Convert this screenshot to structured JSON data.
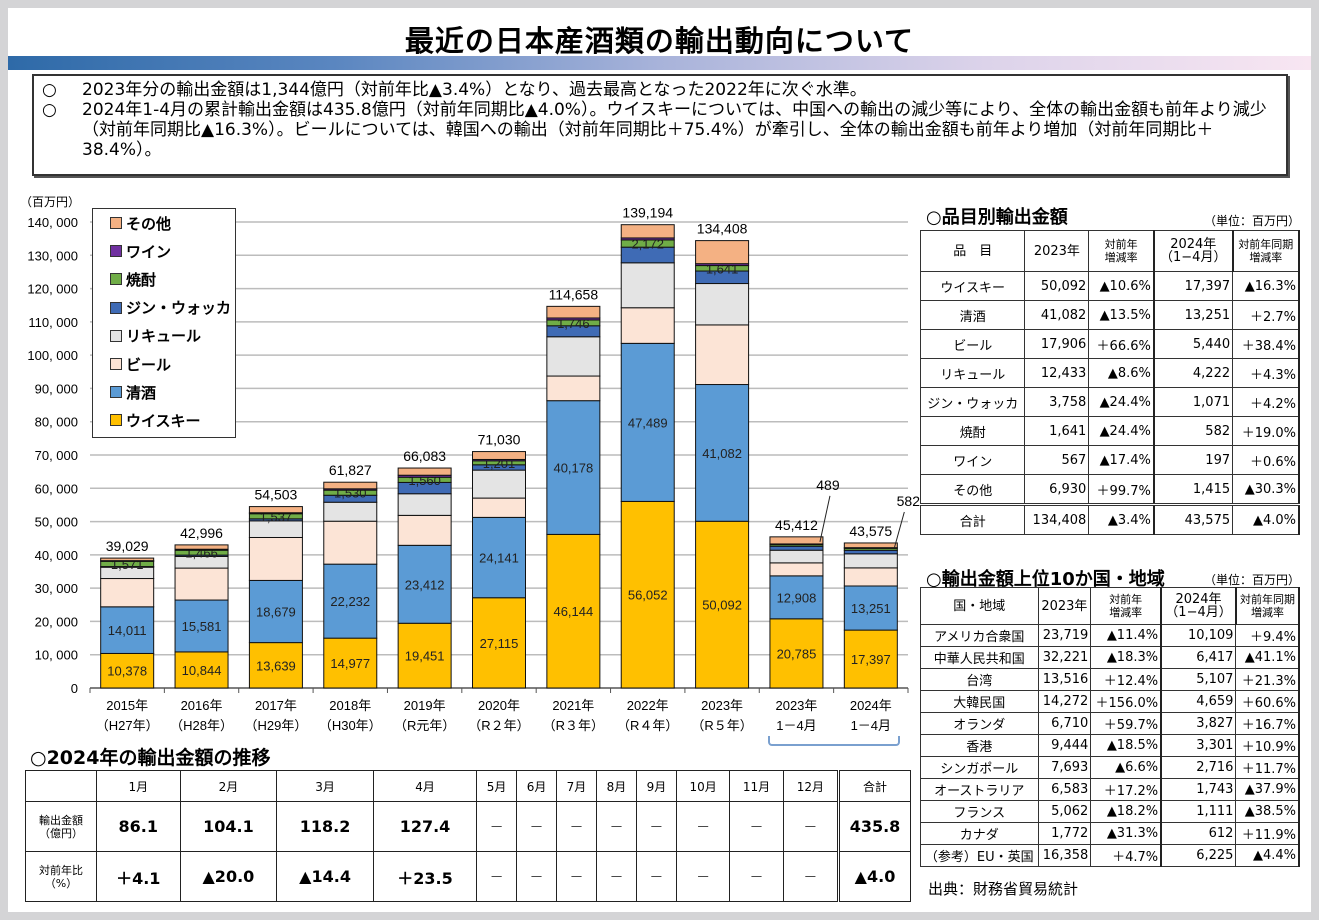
{
  "title": "最近の日本産酒類の輸出動向について",
  "summary": {
    "bullet": "○",
    "lines": [
      "2023年分の輸出金額は1,344億円（対前年比▲3.4%）となり、過去最高となった2022年に次ぐ水準。",
      "2024年1-4月の累計輸出金額は435.8億円（対前年同期比▲4.0%）。ウイスキーについては、中国への輸出の減少等により、全体の輸出金額も前年より減少（対前年同期比▲16.3%）。ビールについては、韓国への輸出（対前年同期比＋75.4%）が牽引し、全体の輸出金額も前年より増加（対前年同期比＋38.4%）。"
    ]
  },
  "chart_data": {
    "type": "bar",
    "stacked": true,
    "title": "",
    "ylabel": "（百万円）",
    "xlabel": "",
    "ylim": [
      0,
      140000
    ],
    "yticks": [
      0,
      10000,
      20000,
      30000,
      40000,
      50000,
      60000,
      70000,
      80000,
      90000,
      100000,
      110000,
      120000,
      130000,
      140000
    ],
    "ytick_labels": [
      "0",
      "10, 000",
      "20, 000",
      "30, 000",
      "40, 000",
      "50, 000",
      "60, 000",
      "70, 000",
      "80, 000",
      "90, 000",
      "100, 000",
      "110, 000",
      "120, 000",
      "130, 000",
      "140, 000"
    ],
    "grid": true,
    "legend_position": "top-left",
    "categories": [
      [
        "2015年",
        "（H27年）"
      ],
      [
        "2016年",
        "（H28年）"
      ],
      [
        "2017年",
        "（H29年）"
      ],
      [
        "2018年",
        "（H30年）"
      ],
      [
        "2019年",
        "（R元年）"
      ],
      [
        "2020年",
        "（R２年）"
      ],
      [
        "2021年",
        "（R３年）"
      ],
      [
        "2022年",
        "（R４年）"
      ],
      [
        "2023年",
        "（R５年）"
      ],
      [
        "2023年",
        "1－4月"
      ],
      [
        "2024年",
        "1－4月"
      ]
    ],
    "series": [
      {
        "name": "ウイスキー",
        "color": "#ffc000",
        "values": [
          10378,
          10844,
          13639,
          14977,
          19451,
          27115,
          46144,
          56052,
          50092,
          20785,
          17397
        ],
        "labels": [
          "10,378",
          "10,844",
          "13,639",
          "14,977",
          "19,451",
          "27,115",
          "46,144",
          "56,052",
          "50,092",
          "20,785",
          "17,397"
        ]
      },
      {
        "name": "清酒",
        "color": "#5b9bd5",
        "values": [
          14011,
          15581,
          18679,
          22232,
          23412,
          24141,
          40178,
          47489,
          41082,
          12908,
          13251
        ],
        "labels": [
          "14,011",
          "15,581",
          "18,679",
          "22,232",
          "23,412",
          "24,141",
          "40,178",
          "47,489",
          "41,082",
          "12,908",
          "13,251"
        ]
      },
      {
        "name": "ビール",
        "color": "#fce4d6",
        "values": [
          8500,
          9600,
          12900,
          12900,
          9000,
          5800,
          7400,
          10700,
          17906,
          3900,
          5440
        ],
        "labels": []
      },
      {
        "name": "リキュール",
        "color": "#e4e4e4",
        "values": [
          3400,
          3500,
          5000,
          5700,
          6500,
          8400,
          11800,
          13500,
          12433,
          3800,
          4222
        ]
      },
      {
        "name": "ジン・ウォッカ",
        "color": "#3f6bb5",
        "values": [
          200,
          400,
          600,
          2100,
          3400,
          1600,
          3300,
          4700,
          3758,
          1200,
          1071
        ]
      },
      {
        "name": "焼酎",
        "color": "#70ad47",
        "values": [
          1571,
          1466,
          1537,
          1530,
          1560,
          1201,
          1746,
          2172,
          1641,
          489,
          582
        ],
        "labels": [
          "1,571",
          "1,466",
          "1,537",
          "1,530",
          "1,560",
          "1,201",
          "1,746",
          "2,172",
          "1,641",
          "489",
          "582"
        ]
      },
      {
        "name": "ワイン",
        "color": "#7030a0",
        "values": [
          200,
          300,
          300,
          400,
          600,
          400,
          600,
          600,
          567,
          200,
          197
        ]
      },
      {
        "name": "その他",
        "color": "#f4b183",
        "values": [
          769,
          1305,
          1848,
          1988,
          2160,
          2373,
          3490,
          3981,
          6930,
          2130,
          1415
        ]
      }
    ],
    "totals": [
      39029,
      42996,
      54503,
      61827,
      66083,
      71030,
      114658,
      139194,
      134408,
      45412,
      43575
    ],
    "total_labels": [
      "39,029",
      "42,996",
      "54,503",
      "61,827",
      "66,083",
      "71,030",
      "114,658",
      "139,194",
      "134,408",
      "45,412",
      "43,575"
    ],
    "callouts": [
      "489",
      "582"
    ]
  },
  "legend": [
    {
      "label": "その他",
      "color": "#f4b183"
    },
    {
      "label": "ワイン",
      "color": "#7030a0"
    },
    {
      "label": "焼酎",
      "color": "#70ad47"
    },
    {
      "label": "ジン・ウォッカ",
      "color": "#3f6bb5"
    },
    {
      "label": "リキュール",
      "color": "#e4e4e4"
    },
    {
      "label": "ビール",
      "color": "#fce4d6"
    },
    {
      "label": "清酒",
      "color": "#5b9bd5"
    },
    {
      "label": "ウイスキー",
      "color": "#ffc000"
    }
  ],
  "items_table": {
    "title": "○品目別輸出金額",
    "unit": "（単位：百万円）",
    "headers": [
      "品　目",
      "2023年",
      "対前年\n増減率",
      "2024年\n（1−4月）",
      "対前年同期\n増減率"
    ],
    "rows": [
      [
        "ウイスキー",
        "50,092",
        "▲10.6%",
        "17,397",
        "▲16.3%"
      ],
      [
        "清酒",
        "41,082",
        "▲13.5%",
        "13,251",
        "＋2.7%"
      ],
      [
        "ビール",
        "17,906",
        "＋66.6%",
        "5,440",
        "＋38.4%"
      ],
      [
        "リキュール",
        "12,433",
        "▲8.6%",
        "4,222",
        "＋4.3%"
      ],
      [
        "ジン・ウォッカ",
        "3,758",
        "▲24.4%",
        "1,071",
        "＋4.2%"
      ],
      [
        "焼酎",
        "1,641",
        "▲24.4%",
        "582",
        "＋19.0%"
      ],
      [
        "ワイン",
        "567",
        "▲17.4%",
        "197",
        "＋0.6%"
      ],
      [
        "その他",
        "6,930",
        "＋99.7%",
        "1,415",
        "▲30.3%"
      ]
    ],
    "total": [
      "合計",
      "134,408",
      "▲3.4%",
      "43,575",
      "▲4.0%"
    ]
  },
  "countries_table": {
    "title": "○輸出金額上位10か国・地域",
    "unit": "（単位：百万円）",
    "headers": [
      "国・地域",
      "2023年",
      "対前年\n増減率",
      "2024年\n（1−4月）",
      "対前年同期\n増減率"
    ],
    "rows": [
      [
        "アメリカ合衆国",
        "23,719",
        "▲11.4%",
        "10,109",
        "＋9.4%"
      ],
      [
        "中華人民共和国",
        "32,221",
        "▲18.3%",
        "6,417",
        "▲41.1%"
      ],
      [
        "台湾",
        "13,516",
        "＋12.4%",
        "5,107",
        "＋21.3%"
      ],
      [
        "大韓民国",
        "14,272",
        "＋156.0%",
        "4,659",
        "＋60.6%"
      ],
      [
        "オランダ",
        "6,710",
        "＋59.7%",
        "3,827",
        "＋16.7%"
      ],
      [
        "香港",
        "9,444",
        "▲18.5%",
        "3,301",
        "＋10.9%"
      ],
      [
        "シンガポール",
        "7,693",
        "▲6.6%",
        "2,716",
        "＋11.7%"
      ],
      [
        "オーストラリア",
        "6,583",
        "＋17.2%",
        "1,743",
        "▲37.9%"
      ],
      [
        "フランス",
        "5,062",
        "▲18.2%",
        "1,111",
        "▲38.5%"
      ],
      [
        "カナダ",
        "1,772",
        "▲31.3%",
        "612",
        "＋11.9%"
      ],
      [
        "（参考）EU・英国",
        "16,358",
        "＋4.7%",
        "6,225",
        "▲4.4%"
      ]
    ]
  },
  "monthly_table": {
    "title": "○2024年の輸出金額の推移",
    "months": [
      "1月",
      "2月",
      "3月",
      "4月",
      "5月",
      "6月",
      "7月",
      "8月",
      "9月",
      "10月",
      "11月",
      "12月",
      "合計"
    ],
    "row1_label": "輸出金額\n（億円）",
    "row1": [
      "86.1",
      "104.1",
      "118.2",
      "127.4",
      "－",
      "－",
      "－",
      "－",
      "－",
      "－",
      "－",
      "－",
      "435.8"
    ],
    "row2_label": "対前年比\n（%）",
    "row2": [
      "＋4.1",
      "▲20.0",
      "▲14.4",
      "＋23.5",
      "－",
      "－",
      "－",
      "－",
      "－",
      "－",
      "－",
      "－",
      "▲4.0"
    ]
  },
  "source": "出典：財務省貿易統計"
}
